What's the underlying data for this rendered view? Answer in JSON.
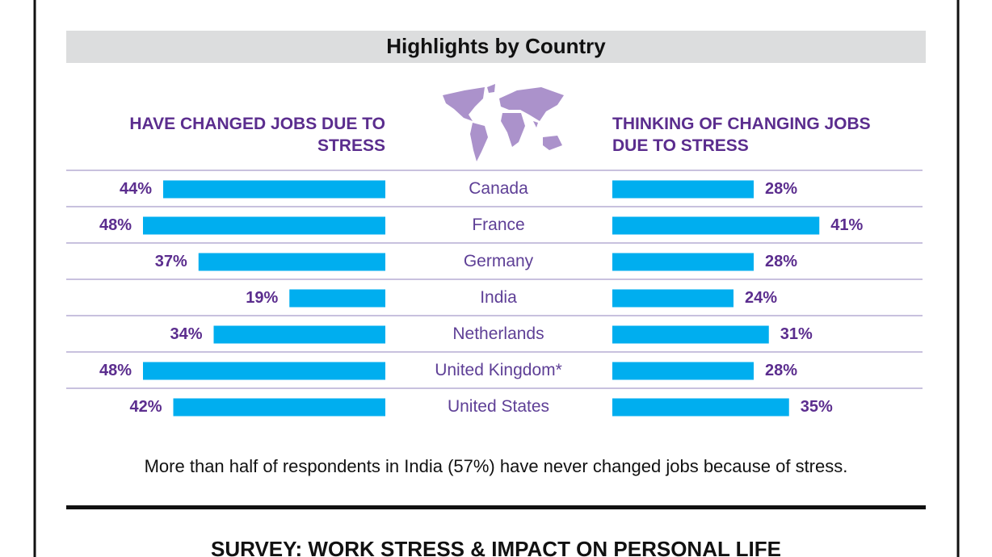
{
  "chart_data": {
    "type": "butterfly",
    "title": "Highlights by Country",
    "categories": [
      "Canada",
      "France",
      "Germany",
      "India",
      "Netherlands",
      "United Kingdom*",
      "United States"
    ],
    "series": [
      {
        "name": "HAVE CHANGED JOBS DUE TO STRESS",
        "color": "#00aeef",
        "values": [
          44,
          48,
          37,
          19,
          34,
          48,
          42
        ],
        "value_labels": [
          "44%",
          "48%",
          "37%",
          "19%",
          "34%",
          "48%",
          "42%"
        ]
      },
      {
        "name": "THINKING OF CHANGING JOBS DUE TO STRESS",
        "color": "#00aeef",
        "values": [
          28,
          41,
          28,
          24,
          31,
          28,
          35
        ],
        "value_labels": [
          "28%",
          "41%",
          "28%",
          "24%",
          "31%",
          "28%",
          "35%"
        ]
      }
    ],
    "note": "More than half of respondents in India (57%) have never changed jobs because of stress.",
    "next_section_title": "SURVEY: WORK STRESS & IMPACT ON PERSONAL LIFE"
  }
}
